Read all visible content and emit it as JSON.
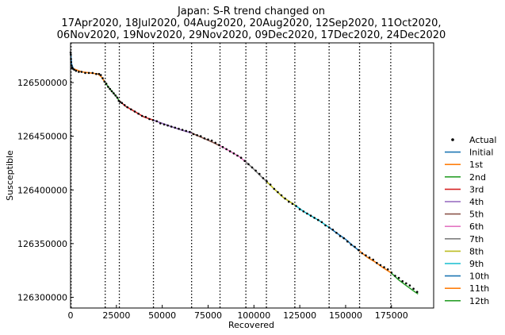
{
  "chart_data": {
    "type": "line",
    "title_lines": [
      "Japan: S-R trend changed on",
      "17Apr2020, 18Jul2020, 04Aug2020, 20Aug2020, 12Sep2020, 11Oct2020,",
      "06Nov2020, 19Nov2020, 29Nov2020, 09Dec2020, 17Dec2020, 24Dec2020"
    ],
    "xlabel": "Recovered",
    "ylabel": "Susceptible",
    "xlim": [
      0,
      198000
    ],
    "ylim": [
      126290000,
      126537000
    ],
    "x_ticks": [
      0,
      25000,
      50000,
      75000,
      100000,
      125000,
      150000,
      175000
    ],
    "x_tick_labels": [
      "0",
      "25000",
      "50000",
      "75000",
      "100000",
      "125000",
      "150000",
      "175000"
    ],
    "y_ticks": [
      126300000,
      126350000,
      126400000,
      126450000,
      126500000
    ],
    "y_tick_labels": [
      "126300000",
      "126350000",
      "126400000",
      "126450000",
      "126500000"
    ],
    "change_points_x": [
      18900,
      26600,
      45200,
      66000,
      81500,
      95600,
      106800,
      122300,
      141000,
      157600,
      174600
    ],
    "legend_placement": "right",
    "actual": {
      "name": "Actual",
      "color": "#000000",
      "x": [
        50,
        120,
        200,
        300,
        500,
        800,
        1200,
        2000,
        3000,
        4500,
        6000,
        8000,
        10000,
        12000,
        14000,
        15500,
        16500,
        17500,
        18500,
        19500,
        20500,
        21500,
        22500,
        23500,
        24500,
        25500,
        26300,
        27000,
        28000,
        29500,
        31000,
        33000,
        35000,
        37000,
        39000,
        41000,
        43000,
        45000,
        47000,
        49000,
        51000,
        53000,
        55000,
        57000,
        59000,
        61000,
        63000,
        65000,
        67000,
        69000,
        71000,
        73000,
        75000,
        77000,
        79000,
        81000,
        83000,
        85000,
        87000,
        89000,
        91000,
        93000,
        95000,
        97000,
        99000,
        101000,
        103000,
        105000,
        107000,
        109000,
        111000,
        113000,
        115000,
        117000,
        119000,
        121000,
        123000,
        125000,
        127000,
        129000,
        131000,
        133000,
        135000,
        137000,
        139000,
        141000,
        143000,
        145000,
        147000,
        149000,
        151000,
        153000,
        155000,
        157000,
        159000,
        161000,
        163000,
        165000,
        167000,
        169000,
        171000,
        173000,
        175000,
        177000,
        179000,
        181000,
        183000,
        185000,
        187000,
        189000
      ],
      "y": [
        126528000,
        126526000,
        126522000,
        126519000,
        126516000,
        126514000,
        126513000,
        126512000,
        126511000,
        126510000,
        126510000,
        126509000,
        126509000,
        126509000,
        126508000,
        126508000,
        126507000,
        126504000,
        126501000,
        126499000,
        126496000,
        126494000,
        126492000,
        126490000,
        126488000,
        126486000,
        126483000,
        126482000,
        126481000,
        126479000,
        126477000,
        126475000,
        126473000,
        126471000,
        126469000,
        126468000,
        126466000,
        126465000,
        126464000,
        126462000,
        126461000,
        126460000,
        126459000,
        126458000,
        126457000,
        126456000,
        126455000,
        126454000,
        126452000,
        126451000,
        126450000,
        126448000,
        126447000,
        126446000,
        126444000,
        126442000,
        126440000,
        126438000,
        126436000,
        126434000,
        126432000,
        126430000,
        126427000,
        126424000,
        126421000,
        126418000,
        126415000,
        126411000,
        126408000,
        126405000,
        126401000,
        126398000,
        126395000,
        126392000,
        126389000,
        126387000,
        126385000,
        126382000,
        126380000,
        126378000,
        126376000,
        126374000,
        126372000,
        126370000,
        126367000,
        126365000,
        126363000,
        126360000,
        126357000,
        126355000,
        126352000,
        126349000,
        126347000,
        126344000,
        126341000,
        126339000,
        126337000,
        126335000,
        126332000,
        126330000,
        126328000,
        126326000,
        126323000,
        126320000,
        126318000,
        126315000,
        126313000,
        126311000,
        126308000,
        126305000
      ]
    },
    "series": [
      {
        "name": "Initial",
        "color": "#1f77b4",
        "x": [
          0,
          600,
          1500
        ],
        "y": [
          126528000,
          126517000,
          126513000
        ]
      },
      {
        "name": "1st",
        "color": "#ff7f0e",
        "x": [
          1500,
          6000,
          11000,
          15000,
          17000,
          18900
        ],
        "y": [
          126513000,
          126510000,
          126509000,
          126508000,
          126505000,
          126500000
        ]
      },
      {
        "name": "2nd",
        "color": "#2ca02c",
        "x": [
          18900,
          21000,
          23000,
          25000,
          26600
        ],
        "y": [
          126500000,
          126495000,
          126491000,
          126487000,
          126483000
        ]
      },
      {
        "name": "3rd",
        "color": "#d62728",
        "x": [
          26600,
          30000,
          35000,
          40000,
          45200
        ],
        "y": [
          126483000,
          126478000,
          126473000,
          126468000,
          126465000
        ]
      },
      {
        "name": "4th",
        "color": "#9467bd",
        "x": [
          45200,
          50000,
          55000,
          60000,
          66000
        ],
        "y": [
          126465000,
          126462000,
          126459000,
          126456000,
          126453000
        ]
      },
      {
        "name": "5th",
        "color": "#8c564b",
        "x": [
          66000,
          70000,
          74000,
          78000,
          81500
        ],
        "y": [
          126453000,
          126450000,
          126447000,
          126444000,
          126441000
        ]
      },
      {
        "name": "6th",
        "color": "#e377c2",
        "x": [
          81500,
          85000,
          89000,
          92000,
          95600
        ],
        "y": [
          126441000,
          126438000,
          126434000,
          126431000,
          126426000
        ]
      },
      {
        "name": "7th",
        "color": "#7f7f7f",
        "x": [
          95600,
          99000,
          103000,
          106800
        ],
        "y": [
          126426000,
          126421000,
          126414000,
          126408000
        ]
      },
      {
        "name": "8th",
        "color": "#bcbd22",
        "x": [
          106800,
          111000,
          116000,
          122300
        ],
        "y": [
          126408000,
          126401000,
          126393000,
          126386000
        ]
      },
      {
        "name": "9th",
        "color": "#17becf",
        "x": [
          122300,
          127000,
          132000,
          136000,
          141000
        ],
        "y": [
          126386000,
          126380000,
          126375000,
          126371000,
          126365000
        ]
      },
      {
        "name": "10th",
        "color": "#1f77b4",
        "x": [
          141000,
          145000,
          150000,
          154000,
          157600
        ],
        "y": [
          126365000,
          126360000,
          126354000,
          126348000,
          126343000
        ]
      },
      {
        "name": "11th",
        "color": "#ff7f0e",
        "x": [
          157600,
          162000,
          166000,
          170000,
          174600
        ],
        "y": [
          126343000,
          126337000,
          126333000,
          126328000,
          126323000
        ]
      },
      {
        "name": "12th",
        "color": "#2ca02c",
        "x": [
          174600,
          179000,
          183000,
          187000,
          189500
        ],
        "y": [
          126323000,
          126316000,
          126311000,
          126306000,
          126303000
        ]
      }
    ]
  }
}
